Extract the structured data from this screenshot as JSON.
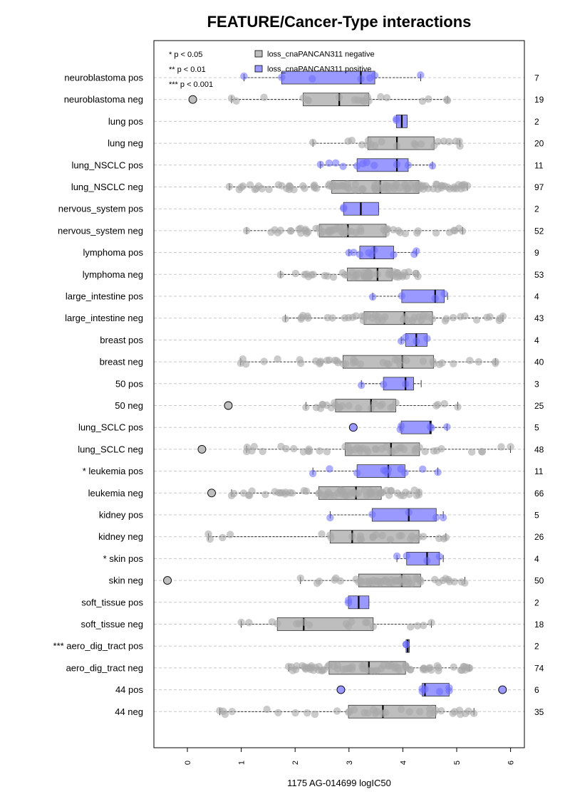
{
  "chart_data": {
    "type": "boxplot",
    "title": "FEATURE/Cancer-Type interactions",
    "xlabel": "1175 AG-014699 logIC50",
    "xlim": [
      -0.7,
      6.3
    ],
    "xticks": [
      0,
      1,
      2,
      3,
      4,
      5,
      6
    ],
    "significance_legend": [
      "* p < 0.05",
      "** p < 0.01",
      "*** p < 0.001"
    ],
    "series_legend": [
      {
        "name": "loss_cnaPANCAN311 negative",
        "color": "#bebebe"
      },
      {
        "name": "loss_cnaPANCAN311 positive",
        "color": "#9999ff"
      }
    ],
    "colors": {
      "negative_box": "#bebebe",
      "positive_box": "#9999ff",
      "negative_point": "#a9a9a9",
      "positive_point": "#6b6bff"
    },
    "groups": [
      {
        "label": "neuroblastoma pos",
        "n": "7",
        "pos": true,
        "min": 1.05,
        "q1": 1.75,
        "median": 3.22,
        "q3": 3.48,
        "max": 4.33,
        "outliers": []
      },
      {
        "label": "neuroblastoma neg",
        "n": "19",
        "pos": false,
        "min": 0.82,
        "q1": 2.15,
        "median": 2.82,
        "q3": 3.37,
        "max": 4.83,
        "outliers": [
          0.1
        ]
      },
      {
        "label": "lung pos",
        "n": "2",
        "pos": true,
        "min": 3.88,
        "q1": 3.88,
        "median": 3.98,
        "q3": 4.08,
        "max": 4.08,
        "outliers": []
      },
      {
        "label": "lung neg",
        "n": "20",
        "pos": false,
        "min": 2.33,
        "q1": 3.35,
        "median": 3.89,
        "q3": 4.58,
        "max": 5.06,
        "outliers": []
      },
      {
        "label": "lung_NSCLC pos",
        "n": "11",
        "pos": true,
        "min": 2.47,
        "q1": 3.15,
        "median": 3.89,
        "q3": 4.1,
        "max": 4.55,
        "outliers": []
      },
      {
        "label": "lung_NSCLC neg",
        "n": "97",
        "pos": false,
        "min": 0.78,
        "q1": 2.68,
        "median": 3.58,
        "q3": 4.3,
        "max": 5.2,
        "outliers": []
      },
      {
        "label": "nervous_system pos",
        "n": "2",
        "pos": true,
        "min": 2.9,
        "q1": 2.9,
        "median": 3.22,
        "q3": 3.55,
        "max": 3.55,
        "outliers": []
      },
      {
        "label": "nervous_system neg",
        "n": "52",
        "pos": false,
        "min": 1.1,
        "q1": 2.45,
        "median": 2.98,
        "q3": 3.69,
        "max": 5.11,
        "outliers": []
      },
      {
        "label": "lymphoma pos",
        "n": "9",
        "pos": true,
        "min": 3.0,
        "q1": 3.2,
        "median": 3.47,
        "q3": 3.83,
        "max": 4.25,
        "outliers": []
      },
      {
        "label": "lymphoma neg",
        "n": "53",
        "pos": false,
        "min": 1.73,
        "q1": 2.97,
        "median": 3.53,
        "q3": 3.8,
        "max": 4.28,
        "outliers": []
      },
      {
        "label": "large_intestine pos",
        "n": "4",
        "pos": true,
        "min": 3.44,
        "q1": 3.98,
        "median": 4.6,
        "q3": 4.77,
        "max": 4.83,
        "outliers": []
      },
      {
        "label": "large_intestine neg",
        "n": "43",
        "pos": false,
        "min": 1.82,
        "q1": 3.28,
        "median": 4.03,
        "q3": 4.55,
        "max": 5.86,
        "outliers": []
      },
      {
        "label": "breast pos",
        "n": "4",
        "pos": true,
        "min": 3.97,
        "q1": 4.05,
        "median": 4.25,
        "q3": 4.45,
        "max": 4.45,
        "outliers": []
      },
      {
        "label": "breast neg",
        "n": "40",
        "pos": false,
        "min": 0.99,
        "q1": 2.89,
        "median": 3.99,
        "q3": 4.57,
        "max": 5.72,
        "outliers": []
      },
      {
        "label": "50 pos",
        "n": "3",
        "pos": true,
        "min": 3.23,
        "q1": 3.64,
        "median": 4.05,
        "q3": 4.2,
        "max": 4.34,
        "outliers": []
      },
      {
        "label": "50 neg",
        "n": "25",
        "pos": false,
        "min": 2.2,
        "q1": 2.75,
        "median": 3.41,
        "q3": 3.87,
        "max": 5.02,
        "outliers": [
          0.76
        ]
      },
      {
        "label": "lung_SCLC pos",
        "n": "5",
        "pos": true,
        "min": 3.95,
        "q1": 3.97,
        "median": 4.51,
        "q3": 4.53,
        "max": 4.82,
        "outliers": [
          3.08
        ]
      },
      {
        "label": "lung_SCLC neg",
        "n": "48",
        "pos": false,
        "min": 1.1,
        "q1": 2.93,
        "median": 3.78,
        "q3": 4.31,
        "max": 6.0,
        "outliers": [
          0.27
        ]
      },
      {
        "label": "* leukemia pos",
        "n": "11",
        "pos": true,
        "min": 2.33,
        "q1": 3.15,
        "median": 3.73,
        "q3": 4.04,
        "max": 4.65,
        "outliers": []
      },
      {
        "label": "leukemia neg",
        "n": "66",
        "pos": false,
        "min": 0.82,
        "q1": 2.44,
        "median": 3.13,
        "q3": 3.6,
        "max": 4.3,
        "outliers": [
          0.45
        ]
      },
      {
        "label": "kidney pos",
        "n": "5",
        "pos": true,
        "min": 2.65,
        "q1": 3.43,
        "median": 4.11,
        "q3": 4.62,
        "max": 4.75,
        "outliers": []
      },
      {
        "label": "kidney neg",
        "n": "26",
        "pos": false,
        "min": 0.39,
        "q1": 2.65,
        "median": 3.06,
        "q3": 4.3,
        "max": 4.8,
        "outliers": []
      },
      {
        "label": "* skin pos",
        "n": "4",
        "pos": true,
        "min": 3.89,
        "q1": 4.07,
        "median": 4.45,
        "q3": 4.68,
        "max": 4.75,
        "outliers": []
      },
      {
        "label": "skin neg",
        "n": "50",
        "pos": false,
        "min": 2.1,
        "q1": 3.18,
        "median": 3.98,
        "q3": 4.33,
        "max": 5.15,
        "outliers": [
          -0.37
        ]
      },
      {
        "label": "soft_tissue pos",
        "n": "2",
        "pos": true,
        "min": 2.99,
        "q1": 2.99,
        "median": 3.18,
        "q3": 3.37,
        "max": 3.37,
        "outliers": []
      },
      {
        "label": "soft_tissue neg",
        "n": "18",
        "pos": false,
        "min": 1.0,
        "q1": 1.67,
        "median": 2.16,
        "q3": 3.45,
        "max": 4.53,
        "outliers": []
      },
      {
        "label": "*** aero_dig_tract pos",
        "n": "2",
        "pos": true,
        "min": 4.06,
        "q1": 4.06,
        "median": 4.09,
        "q3": 4.12,
        "max": 4.12,
        "outliers": []
      },
      {
        "label": "aero_dig_tract neg",
        "n": "74",
        "pos": false,
        "min": 1.88,
        "q1": 2.63,
        "median": 3.37,
        "q3": 4.05,
        "max": 5.24,
        "outliers": []
      },
      {
        "label": "44 pos",
        "n": "6",
        "pos": true,
        "min": 4.36,
        "q1": 4.36,
        "median": 4.41,
        "q3": 4.86,
        "max": 4.86,
        "outliers": [
          2.85,
          5.85
        ]
      },
      {
        "label": "44 neg",
        "n": "35",
        "pos": false,
        "min": 0.6,
        "q1": 2.99,
        "median": 3.63,
        "q3": 4.61,
        "max": 5.32,
        "outliers": []
      }
    ]
  }
}
